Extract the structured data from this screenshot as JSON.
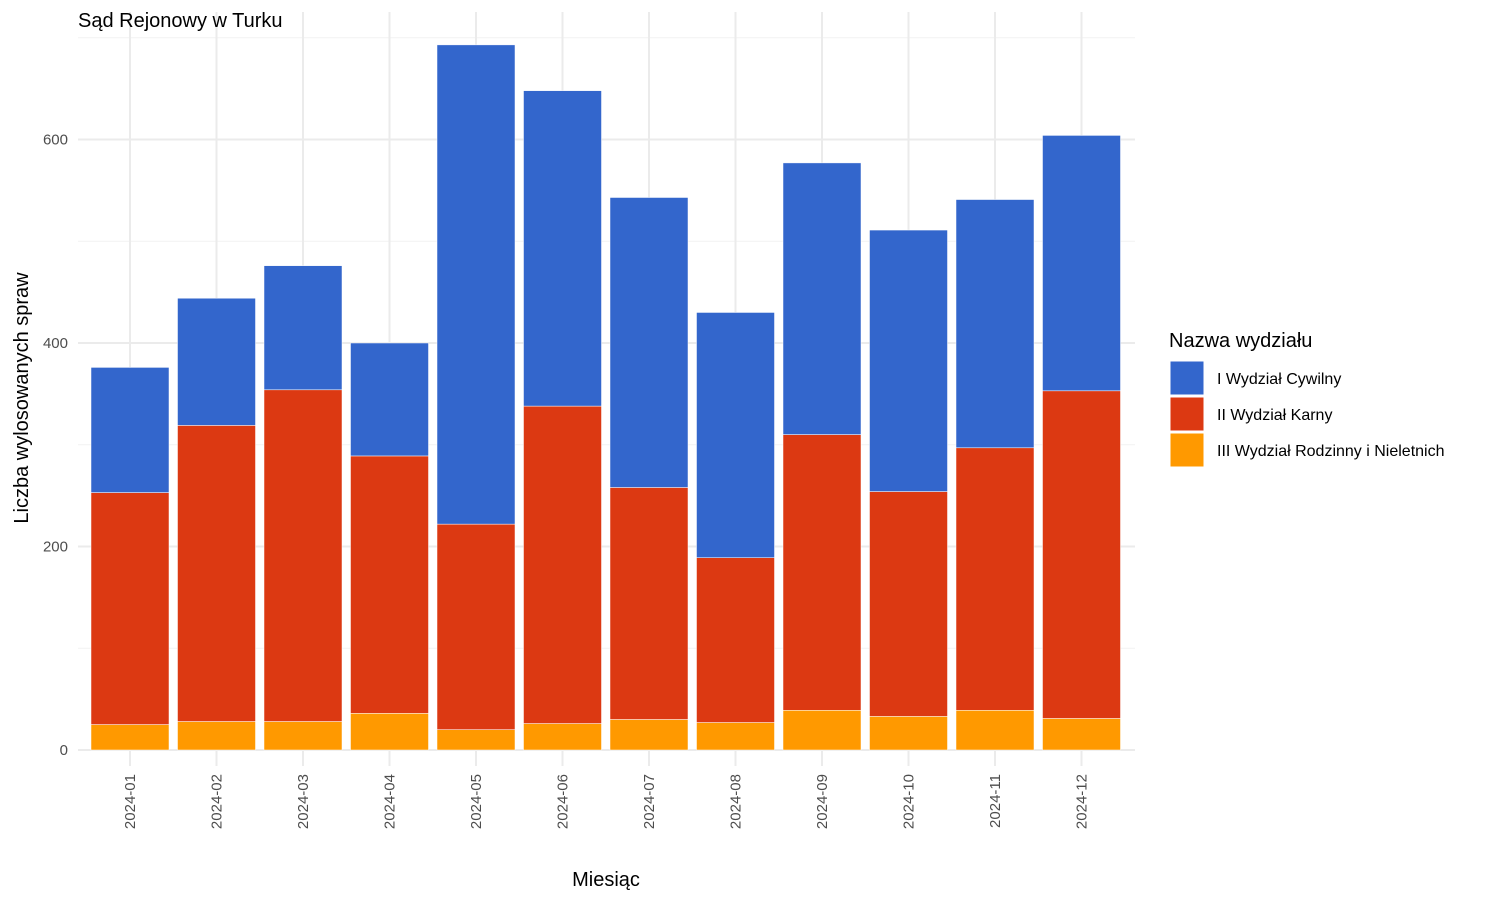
{
  "chart_data": {
    "type": "bar",
    "stacked": true,
    "title": "Sąd Rejonowy w Turku",
    "xlabel": "Miesiąc",
    "ylabel": "Liczba wylosowanych spraw",
    "ylim": [
      0,
      700
    ],
    "yticks": [
      0,
      200,
      400,
      600
    ],
    "grid": true,
    "legend_position": "right",
    "legend_title": "Nazwa wydziału",
    "categories": [
      "2024-01",
      "2024-02",
      "2024-03",
      "2024-04",
      "2024-05",
      "2024-06",
      "2024-07",
      "2024-08",
      "2024-09",
      "2024-10",
      "2024-11",
      "2024-12"
    ],
    "series": [
      {
        "name": "III Wydział Rodzinny i Nieletnich",
        "color": "#ff9900",
        "values": [
          25,
          28,
          28,
          36,
          20,
          26,
          30,
          27,
          39,
          33,
          39,
          31
        ]
      },
      {
        "name": "II Wydział Karny",
        "color": "#dc3912",
        "values": [
          228,
          291,
          326,
          253,
          202,
          312,
          228,
          162,
          271,
          221,
          258,
          322
        ]
      },
      {
        "name": "I Wydział Cywilny",
        "color": "#3366cc",
        "values": [
          123,
          125,
          122,
          111,
          471,
          310,
          285,
          241,
          267,
          257,
          244,
          251
        ]
      }
    ],
    "legend_order": [
      "I Wydział Cywilny",
      "II Wydział Karny",
      "III Wydział Rodzinny i Nieletnich"
    ]
  }
}
